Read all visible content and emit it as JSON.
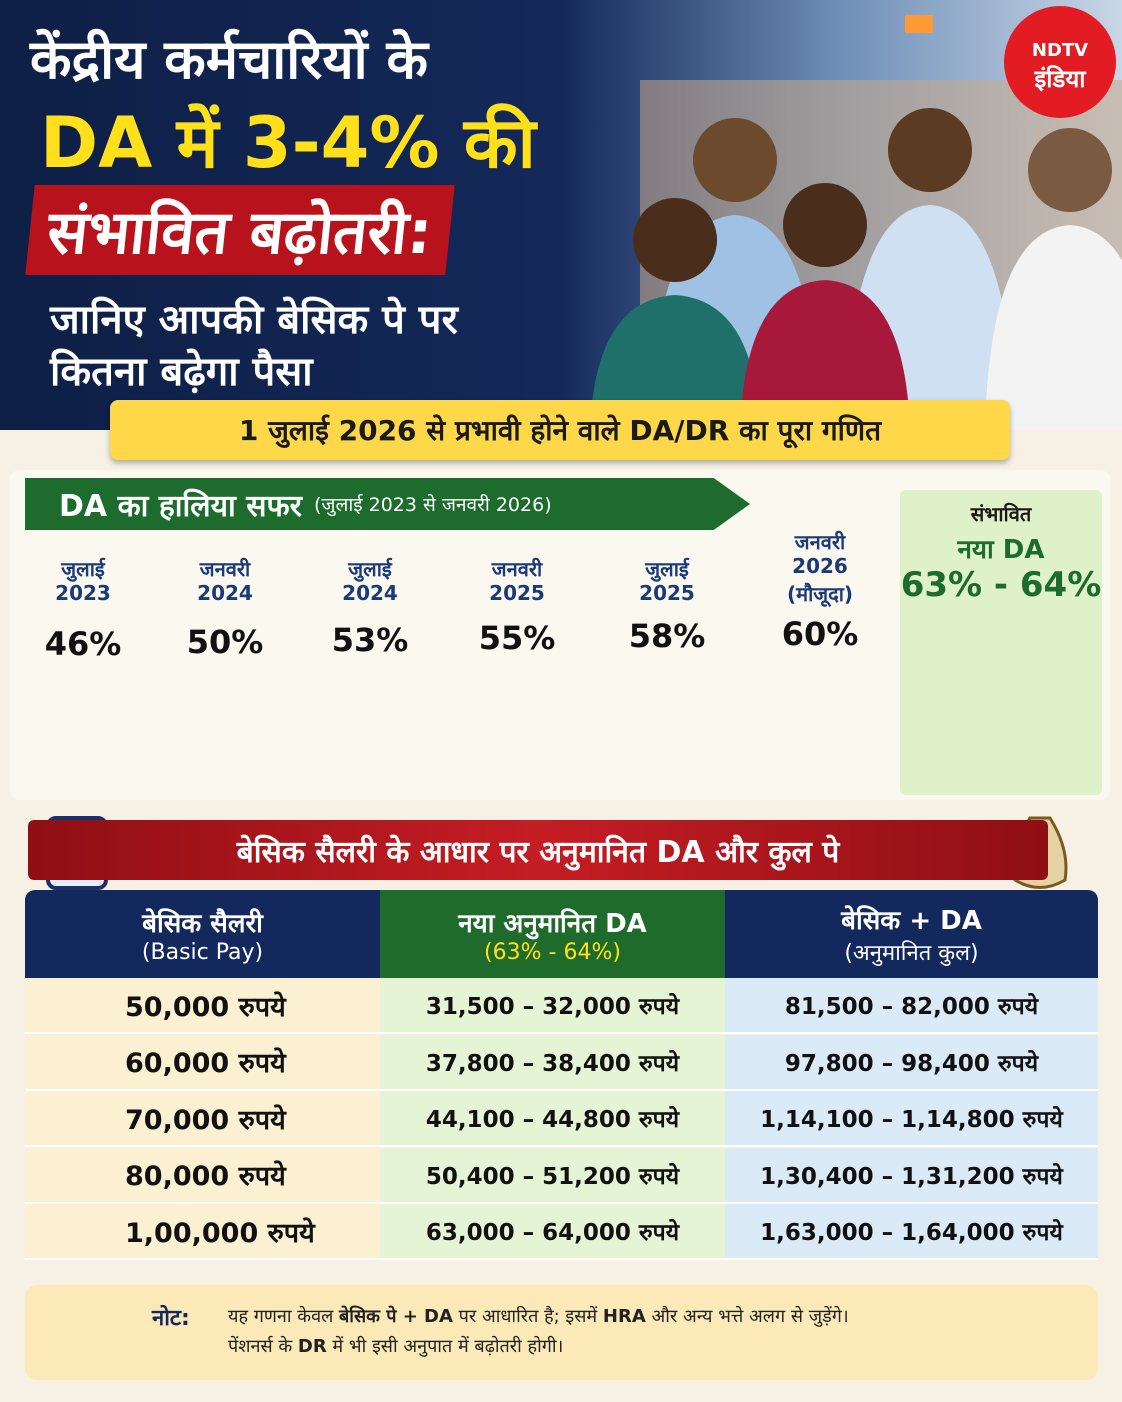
{
  "header": {
    "title_lines": [
      "केंद्रीय कर्मचारियों के",
      "DA में 3-4% की",
      "संभावित बढ़ोतरी:"
    ],
    "subtitle_lines": [
      "जानिए आपकी बेसिक पे पर",
      "कितना बढ़ेगा पैसा"
    ],
    "logo": [
      "NDTV",
      "इंडिया"
    ]
  },
  "banner": "1 जुलाई 2026 से प्रभावी होने वाले DA/DR का पूरा गणित",
  "timeline": {
    "title": "DA का हालिया सफर",
    "title_note": "(जुलाई 2023 से जनवरी 2026)",
    "points": [
      {
        "period": [
          "जुलाई",
          "2023"
        ],
        "value": "46%"
      },
      {
        "period": [
          "जनवरी",
          "2024"
        ],
        "value": "50%"
      },
      {
        "period": [
          "जुलाई",
          "2024"
        ],
        "value": "53%"
      },
      {
        "period": [
          "जनवरी",
          "2025"
        ],
        "value": "55%"
      },
      {
        "period": [
          "जुलाई",
          "2025"
        ],
        "value": "58%"
      },
      {
        "period": [
          "जनवरी",
          "2026",
          "(मौजूदा)"
        ],
        "value": "60%"
      }
    ],
    "projection": {
      "label": [
        "संभावित",
        "नया DA"
      ],
      "value": "63% - 64%"
    }
  },
  "table": {
    "title": "बेसिक सैलरी के आधार पर अनुमानित DA और कुल पे",
    "headers": [
      [
        "बेसिक सैलरी",
        "(Basic Pay)"
      ],
      [
        "नया अनुमानित DA",
        "(63% - 64%)"
      ],
      [
        "बेसिक + DA",
        "(अनुमानित कुल)"
      ]
    ],
    "rows": [
      [
        "50,000 रुपये",
        "31,500 – 32,000 रुपये",
        "81,500 – 82,000 रुपये"
      ],
      [
        "60,000 रुपये",
        "37,800 – 38,400 रुपये",
        "97,800 – 98,400 रुपये"
      ],
      [
        "70,000 रुपये",
        "44,100 – 44,800 रुपये",
        "1,14,100 – 1,14,800 रुपये"
      ],
      [
        "80,000 रुपये",
        "50,400 – 51,200 रुपये",
        "1,30,400 – 1,31,200 रुपये"
      ],
      [
        "1,00,000 रुपये",
        "63,000 – 64,000 रुपये",
        "1,63,000 – 1,64,000 रुपये"
      ]
    ]
  },
  "note": {
    "label": "नोट:",
    "line1": [
      "यह गणना केवल ",
      "बेसिक पे + DA",
      " पर आधारित है; इसमें ",
      "HRA",
      " और अन्य भत्ते अलग से जुड़ेंगे।"
    ],
    "line2": [
      "पेंशनर्स के ",
      "DR",
      " में भी इसी अनुपात में बढ़ोतरी होगी।"
    ]
  }
}
